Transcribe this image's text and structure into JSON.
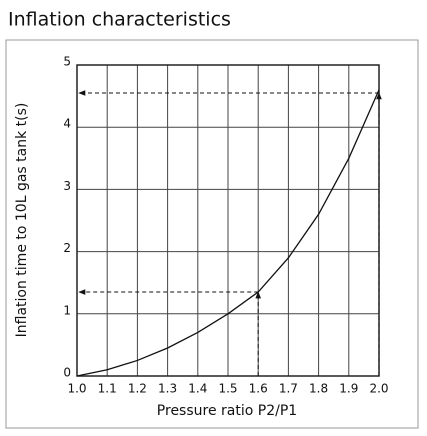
{
  "chart_data": {
    "type": "line",
    "title": "Inflation characteristics",
    "x_label": "Pressure ratio P2/P1",
    "y_label": "Inflation time to 10L gas tank t(s)",
    "x": [
      1.0,
      1.1,
      1.2,
      1.3,
      1.4,
      1.5,
      1.6,
      1.7,
      1.8,
      1.9,
      2.0
    ],
    "series": [
      {
        "color": "#111111",
        "values": [
          0,
          0.1,
          0.25,
          0.45,
          0.7,
          1.0,
          1.35,
          1.9,
          2.6,
          3.5,
          4.6
        ]
      }
    ],
    "markers": [
      {
        "x": 1.6,
        "y": 1.35
      },
      {
        "x": 2.0,
        "y": 4.55
      }
    ],
    "xlim": [
      1.0,
      2.0
    ],
    "ylim": [
      0,
      5
    ],
    "xticks": [
      {
        "value": 1,
        "label": "1.0"
      },
      1.1,
      1.2,
      1.3,
      1.4,
      1.5,
      1.6,
      1.7,
      1.8,
      1.9,
      {
        "value": 2,
        "label": "2.0"
      }
    ],
    "yticks": [
      0,
      1,
      2,
      3,
      4,
      5
    ],
    "grid": true
  }
}
